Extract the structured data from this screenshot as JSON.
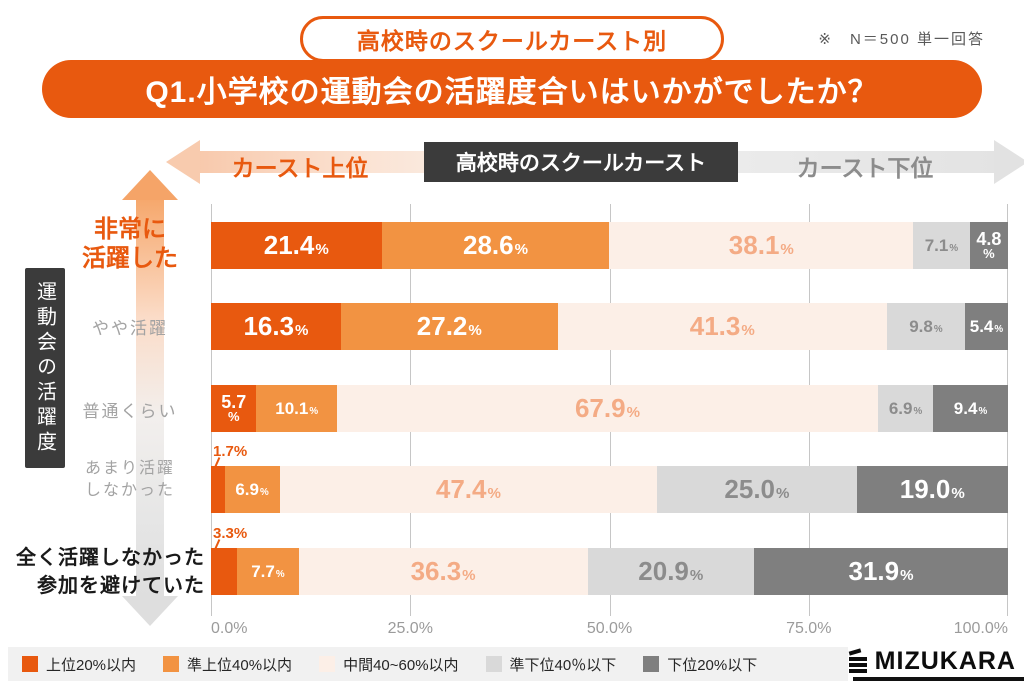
{
  "header": {
    "badge": "高校時のスクールカースト別",
    "note": "※　N＝500 単一回答",
    "title": "Q1.小学校の運動会の活躍度合いはいかがでしたか？"
  },
  "caste_axis": {
    "left_label": "カースト上位",
    "center_label": "高校時のスクールカースト",
    "right_label": "カースト下位"
  },
  "y_axis_title": "運動会の活躍度",
  "chart_data": {
    "type": "bar",
    "stacked": true,
    "orientation": "horizontal",
    "title": "Q1.小学校の運動会の活躍度合いはいかがでしたか？",
    "categories": [
      "非常に活躍した",
      "やや活躍",
      "普通くらい",
      "あまり活躍しなかった",
      "全く活躍しなかった参加を避けていた"
    ],
    "category_display": [
      "非常に\n活躍した",
      "やや活躍",
      "普通くらい",
      "あまり活躍\nしなかった",
      "全く活躍しなかった\n参加を避けていた"
    ],
    "series": [
      {
        "name": "上位20%以内",
        "color": "#E8590F",
        "values": [
          21.4,
          16.3,
          5.7,
          1.7,
          3.3
        ]
      },
      {
        "name": "準上位40%以内",
        "color": "#F29342",
        "values": [
          28.6,
          27.2,
          10.1,
          6.9,
          7.7
        ]
      },
      {
        "name": "中間40~60%以内",
        "color": "#FCEFE7",
        "values": [
          38.1,
          41.3,
          67.9,
          47.4,
          36.3
        ]
      },
      {
        "name": "準下位40％以下",
        "color": "#D9D9D9",
        "values": [
          7.1,
          9.8,
          6.9,
          25.0,
          20.9
        ]
      },
      {
        "name": "下位20%以下",
        "color": "#7F7F7F",
        "values": [
          4.8,
          5.4,
          9.4,
          19.0,
          31.9
        ]
      }
    ],
    "x_ticks": [
      "0.0%",
      "25.0%",
      "50.0%",
      "75.0%",
      "100.0%"
    ],
    "xlim": [
      0,
      100
    ],
    "value_suffix": "%",
    "grid": true,
    "legend_position": "bottom"
  },
  "footer": {
    "brand": "MIZUKARA"
  }
}
